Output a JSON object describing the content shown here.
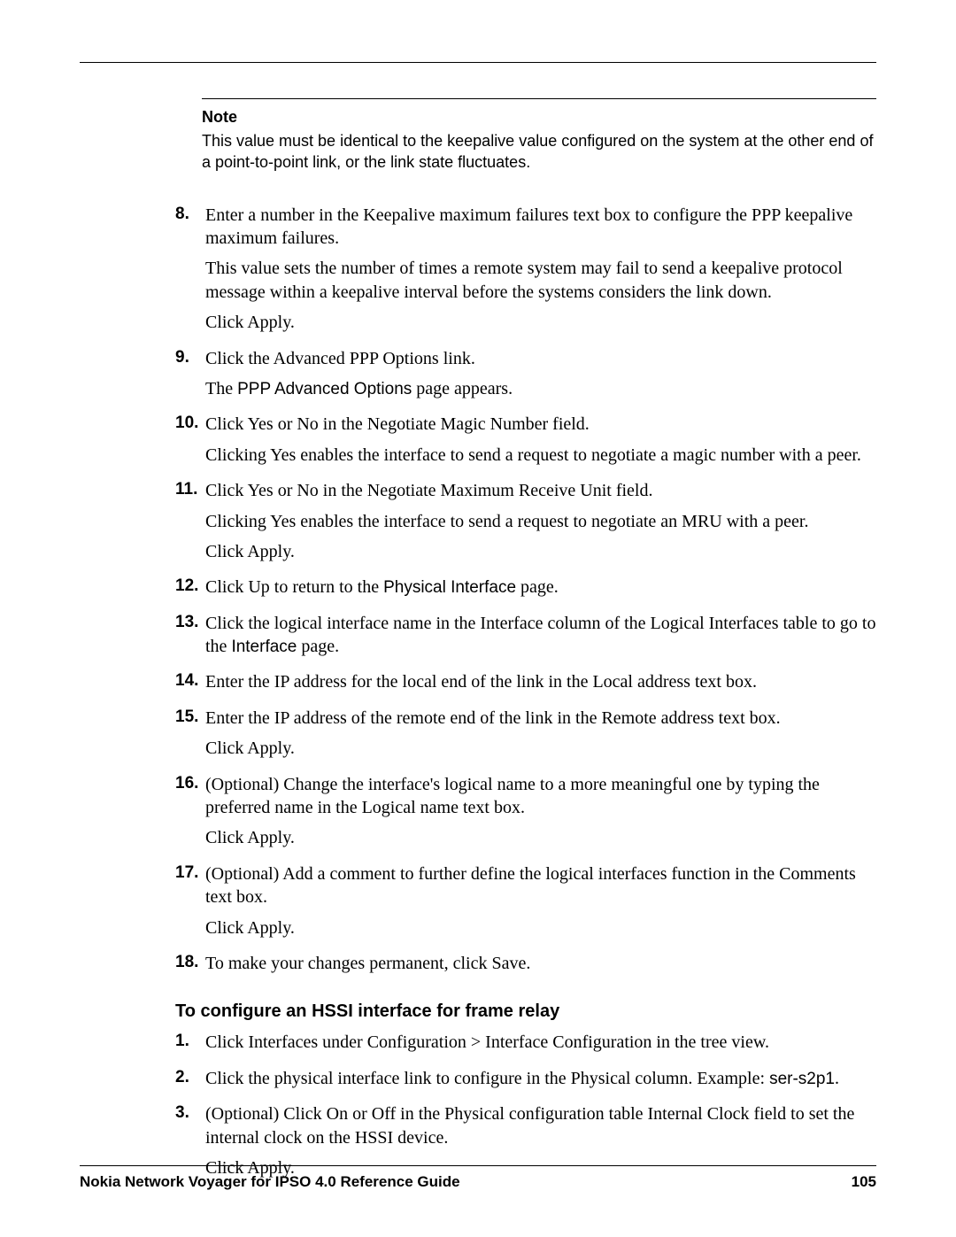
{
  "note": {
    "heading": "Note",
    "text": "This value must be identical to the keepalive value configured on the system at the other end of a point-to-point link, or the link state fluctuates."
  },
  "steps1": [
    {
      "num": "8.",
      "paras": [
        "Enter a number in the Keepalive maximum failures text box to configure the PPP keepalive maximum failures.",
        "This value sets the number of times a remote system may fail to send a keepalive protocol message within a keepalive interval before the systems considers the link down.",
        "Click Apply."
      ]
    },
    {
      "num": "9.",
      "paras": [
        "Click the Advanced PPP Options link."
      ],
      "mixed": {
        "pre": "The ",
        "sans": "PPP Advanced Options",
        "post": " page appears."
      }
    },
    {
      "num": "10.",
      "paras": [
        "Click Yes or No in the Negotiate Magic Number field.",
        "Clicking Yes enables the interface to send a request to negotiate a magic number with a peer."
      ]
    },
    {
      "num": "11.",
      "paras": [
        "Click Yes or No in the Negotiate Maximum Receive Unit field.",
        "Clicking Yes enables the interface to send a request to negotiate an MRU with a peer.",
        "Click Apply."
      ]
    },
    {
      "num": "12.",
      "mixed": {
        "pre": "Click Up to return to the ",
        "sans": "Physical Interface",
        "post": " page."
      }
    },
    {
      "num": "13.",
      "mixed": {
        "pre": "Click the logical interface name in the Interface column of the Logical Interfaces table to go to the ",
        "sans": "Interface",
        "post": " page."
      }
    },
    {
      "num": "14.",
      "paras": [
        "Enter the IP address for the local end of the link in the Local address text box."
      ]
    },
    {
      "num": "15.",
      "paras": [
        "Enter the IP address of the remote end of the link in the Remote address text box.",
        "Click Apply."
      ]
    },
    {
      "num": "16.",
      "paras": [
        "(Optional) Change the interface's logical name to a more meaningful one by typing the preferred name in the Logical name text box.",
        "Click Apply."
      ]
    },
    {
      "num": "17.",
      "paras": [
        "(Optional) Add a comment to further define the logical interfaces function in the Comments text box.",
        "Click Apply."
      ]
    },
    {
      "num": "18.",
      "paras": [
        "To make your changes permanent, click Save."
      ]
    }
  ],
  "subheading": "To configure an HSSI interface for frame relay",
  "steps2": [
    {
      "num": "1.",
      "paras": [
        "Click Interfaces under Configuration > Interface Configuration in the tree view."
      ]
    },
    {
      "num": "2.",
      "mixed": {
        "pre": "Click the physical interface link to configure in the Physical column. Example: ",
        "sans": "ser-s2p1",
        "post": "."
      }
    },
    {
      "num": "3.",
      "paras": [
        "(Optional) Click On or Off in the Physical configuration table Internal Clock field to set the internal clock on the HSSI device.",
        "Click Apply."
      ]
    }
  ],
  "footer": {
    "title": "Nokia Network Voyager for IPSO 4.0 Reference Guide",
    "page": "105"
  }
}
